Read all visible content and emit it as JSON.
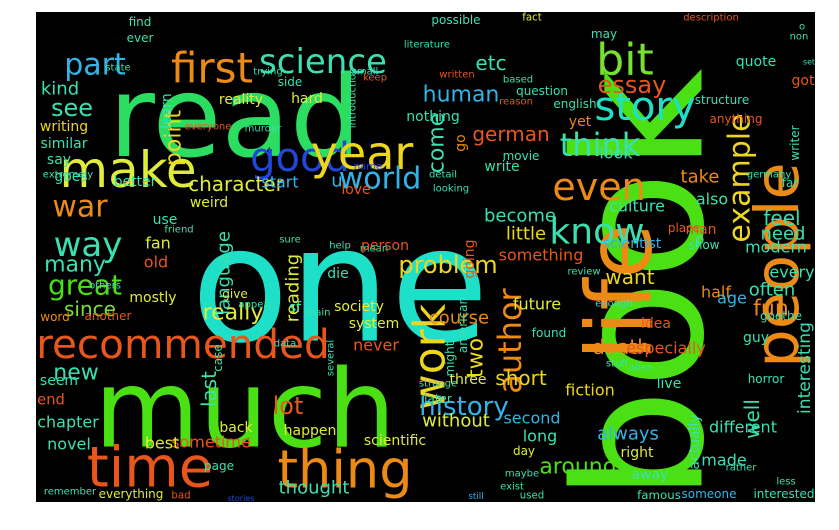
{
  "background": "#000000",
  "words": [
    {
      "text": "book",
      "color": "#4be014",
      "rot": -90
    },
    {
      "text": "one",
      "color": "#1ee0c8",
      "rot": 0
    },
    {
      "text": "read",
      "color": "#2bde62",
      "rot": 0
    },
    {
      "text": "much",
      "color": "#4be014",
      "rot": 0
    },
    {
      "text": "people",
      "color": "#ec8a16",
      "rot": -90
    },
    {
      "text": "life",
      "color": "#ec8a16",
      "rot": -90
    },
    {
      "text": "time",
      "color": "#e8561c",
      "rot": 0
    },
    {
      "text": "thing",
      "color": "#ec8a16",
      "rot": 0
    },
    {
      "text": "make",
      "color": "#e0ec3a",
      "rot": 0
    },
    {
      "text": "recommended",
      "color": "#e8561c",
      "rot": 0
    },
    {
      "text": "first",
      "color": "#ec8a16",
      "rot": 0
    },
    {
      "text": "good",
      "color": "#2146d8",
      "rot": 0
    },
    {
      "text": "year",
      "color": "#ecd71e",
      "rot": 0
    },
    {
      "text": "science",
      "color": "#3ae0b0",
      "rot": 0
    },
    {
      "text": "bit",
      "color": "#78e030",
      "rot": 0
    },
    {
      "text": "story",
      "color": "#1ee0c8",
      "rot": 0
    },
    {
      "text": "part",
      "color": "#32b4e8",
      "rot": 0
    },
    {
      "text": "war",
      "color": "#ec8a16",
      "rot": 0
    },
    {
      "text": "way",
      "color": "#3ae0b0",
      "rot": 0
    },
    {
      "text": "work",
      "color": "#ecd71e",
      "rot": -90
    },
    {
      "text": "know",
      "color": "#3ae0b0",
      "rot": 0
    },
    {
      "text": "even",
      "color": "#ec8a16",
      "rot": 0
    },
    {
      "text": "think",
      "color": "#3ae0b0",
      "rot": 0
    },
    {
      "text": "world",
      "color": "#32b4e8",
      "rot": 0
    },
    {
      "text": "great",
      "color": "#4be014",
      "rot": 0
    },
    {
      "text": "example",
      "color": "#ecd71e",
      "rot": -90
    },
    {
      "text": "essay",
      "color": "#e8561c",
      "rot": 0
    },
    {
      "text": "history",
      "color": "#32b4e8",
      "rot": 0
    },
    {
      "text": "problem",
      "color": "#ecd71e",
      "rot": 0
    },
    {
      "text": "author",
      "color": "#ec8a16",
      "rot": -90
    },
    {
      "text": "around",
      "color": "#4be014",
      "rot": 0
    },
    {
      "text": "stories",
      "color": "#2146d8",
      "rot": 0
    },
    {
      "text": "still",
      "color": "#32b4e8",
      "rot": 0
    },
    {
      "text": "interesting",
      "color": "#3ae0b0",
      "rot": -90
    },
    {
      "text": "lot",
      "color": "#e8561c",
      "rot": 0
    },
    {
      "text": "fun",
      "color": "#ec8a16",
      "rot": 0
    },
    {
      "text": "character",
      "color": "#e0ec3a",
      "rot": 0
    },
    {
      "text": "human",
      "color": "#32b4e8",
      "rot": 0
    },
    {
      "text": "german",
      "color": "#e8561c",
      "rot": 0
    },
    {
      "text": "see",
      "color": "#3ae0b0",
      "rot": 0
    },
    {
      "text": "new",
      "color": "#3ae0b0",
      "rot": 0
    },
    {
      "text": "since",
      "color": "#78e030",
      "rot": 0
    },
    {
      "text": "many",
      "color": "#3ae0b0",
      "rot": 0
    },
    {
      "text": "really",
      "color": "#e0ec3a",
      "rot": 0
    },
    {
      "text": "want",
      "color": "#ecd71e",
      "rot": 0
    },
    {
      "text": "feel",
      "color": "#3ae0b0",
      "rot": 0
    },
    {
      "text": "take",
      "color": "#ec8a16",
      "rot": 0
    },
    {
      "text": "need",
      "color": "#3ae0b0",
      "rot": 0
    },
    {
      "text": "point",
      "color": "#ecd71e",
      "rot": -90
    },
    {
      "text": "come",
      "color": "#3ae0b0",
      "rot": -90
    },
    {
      "text": "etc",
      "color": "#3ae0b0",
      "rot": 0
    },
    {
      "text": "course",
      "color": "#ec8a16",
      "rot": 0
    },
    {
      "text": "kind",
      "color": "#3ae0b0",
      "rot": 0
    },
    {
      "text": "two",
      "color": "#ecd71e",
      "rot": -90
    },
    {
      "text": "thought",
      "color": "#3ae0b0",
      "rot": 0
    },
    {
      "text": "death",
      "color": "#ec8a16",
      "rot": 0
    },
    {
      "text": "short",
      "color": "#ecd71e",
      "rot": 0
    },
    {
      "text": "always",
      "color": "#32b4e8",
      "rot": 0
    },
    {
      "text": "language",
      "color": "#3ae0b0",
      "rot": -90
    },
    {
      "text": "reading",
      "color": "#e0ec3a",
      "rot": -90
    },
    {
      "text": "little",
      "color": "#ecd71e",
      "rot": 0
    },
    {
      "text": "become",
      "color": "#3ae0b0",
      "rot": 0
    },
    {
      "text": "u",
      "color": "#32b4e8",
      "rot": 0
    },
    {
      "text": "start",
      "color": "#32b4e8",
      "rot": 0
    },
    {
      "text": "something",
      "color": "#e8561c",
      "rot": 0
    },
    {
      "text": "without",
      "color": "#e0ec3a",
      "rot": 0
    },
    {
      "text": "future",
      "color": "#e0ec3a",
      "rot": 0
    },
    {
      "text": "last",
      "color": "#3ae0b0",
      "rot": -90
    },
    {
      "text": "sometime",
      "color": "#e8561c",
      "rot": 0
    },
    {
      "text": "end",
      "color": "#e8561c",
      "rot": 0
    },
    {
      "text": "chapter",
      "color": "#3ae0b0",
      "rot": 0
    },
    {
      "text": "novel",
      "color": "#3ae0b0",
      "rot": 0
    },
    {
      "text": "best",
      "color": "#e0ec3a",
      "rot": 0
    },
    {
      "text": "often",
      "color": "#3ae0b0",
      "rot": 0
    },
    {
      "text": "every",
      "color": "#3ae0b0",
      "rot": 0
    },
    {
      "text": "also",
      "color": "#3ae0b0",
      "rot": 0
    },
    {
      "text": "look",
      "color": "#3ae0b0",
      "rot": 0
    },
    {
      "text": "fiction",
      "color": "#ecd71e",
      "rot": 0
    },
    {
      "text": "second",
      "color": "#32b4e8",
      "rot": 0
    },
    {
      "text": "long",
      "color": "#3ae0b0",
      "rot": 0
    },
    {
      "text": "well",
      "color": "#3ae0b0",
      "rot": -90
    },
    {
      "text": "made",
      "color": "#3ae0b0",
      "rot": 0
    },
    {
      "text": "different",
      "color": "#3ae0b0",
      "rot": 0
    },
    {
      "text": "half",
      "color": "#ec8a16",
      "rot": 0
    },
    {
      "text": "modern",
      "color": "#3ae0b0",
      "rot": 0
    },
    {
      "text": "age",
      "color": "#32b4e8",
      "rot": 0
    },
    {
      "text": "culture",
      "color": "#3ae0b0",
      "rot": 0
    },
    {
      "text": "scientist",
      "color": "#32b4e8",
      "rot": 0
    },
    {
      "text": "go",
      "color": "#ec8a16",
      "rot": -90
    },
    {
      "text": "write",
      "color": "#3ae0b0",
      "rot": 0
    },
    {
      "text": "going",
      "color": "#e8561c",
      "rot": -90
    },
    {
      "text": "idea",
      "color": "#e8561c",
      "rot": 0
    },
    {
      "text": "especially",
      "color": "#e8561c",
      "rot": 0
    },
    {
      "text": "guy",
      "color": "#3ae0b0",
      "rot": 0
    },
    {
      "text": "fan",
      "color": "#e0ec3a",
      "rot": 0
    },
    {
      "text": "old",
      "color": "#e8561c",
      "rot": 0
    },
    {
      "text": "use",
      "color": "#3ae0b0",
      "rot": 0
    },
    {
      "text": "die",
      "color": "#3ae0b0",
      "rot": 0
    },
    {
      "text": "love",
      "color": "#e8561c",
      "rot": 0
    },
    {
      "text": "better",
      "color": "#3ae0b0",
      "rot": 0
    },
    {
      "text": "goes",
      "color": "#3ae0b0",
      "rot": 0
    },
    {
      "text": "mostly",
      "color": "#e0ec3a",
      "rot": 0
    },
    {
      "text": "give",
      "color": "#e0ec3a",
      "rot": 0
    },
    {
      "text": "sf",
      "color": "#3ae0b0",
      "rot": 0
    },
    {
      "text": "society",
      "color": "#e0ec3a",
      "rot": 0
    },
    {
      "text": "system",
      "color": "#e0ec3a",
      "rot": 0
    },
    {
      "text": "never",
      "color": "#e8561c",
      "rot": 0
    },
    {
      "text": "happen",
      "color": "#e0ec3a",
      "rot": 0
    },
    {
      "text": "three",
      "color": "#e0ec3a",
      "rot": 0
    },
    {
      "text": "live",
      "color": "#3ae0b0",
      "rot": 0
    },
    {
      "text": "right",
      "color": "#e0ec3a",
      "rot": 0
    },
    {
      "text": "actually",
      "color": "#3ae0b0",
      "rot": -90
    },
    {
      "text": "away",
      "color": "#3ae0b0",
      "rot": 0
    },
    {
      "text": "famous",
      "color": "#3ae0b0",
      "rot": 0
    },
    {
      "text": "someone",
      "color": "#32b4e8",
      "rot": 0
    },
    {
      "text": "used",
      "color": "#3ae0b0",
      "rot": 0
    },
    {
      "text": "day",
      "color": "#e0ec3a",
      "rot": 0
    },
    {
      "text": "scientific",
      "color": "#e0ec3a",
      "rot": 0
    },
    {
      "text": "page",
      "color": "#3ae0b0",
      "rot": 0
    },
    {
      "text": "back",
      "color": "#e0ec3a",
      "rot": 0
    },
    {
      "text": "everything",
      "color": "#e0ec3a",
      "rot": 0
    },
    {
      "text": "bad",
      "color": "#e8561c",
      "rot": 0
    },
    {
      "text": "seem",
      "color": "#3ae0b0",
      "rot": 0
    },
    {
      "text": "nothing",
      "color": "#3ae0b0",
      "rot": 0
    },
    {
      "text": "writing",
      "color": "#ecd71e",
      "rot": 0
    },
    {
      "text": "similar",
      "color": "#3ae0b0",
      "rot": 0
    },
    {
      "text": "say",
      "color": "#3ae0b0",
      "rot": 0
    },
    {
      "text": "reality",
      "color": "#e0ec3a",
      "rot": 0
    },
    {
      "text": "learn",
      "color": "#3ae0b0",
      "rot": -90
    },
    {
      "text": "hard",
      "color": "#e0ec3a",
      "rot": 0
    },
    {
      "text": "side",
      "color": "#3ae0b0",
      "rot": 0
    },
    {
      "text": "english",
      "color": "#3ae0b0",
      "rot": 0
    },
    {
      "text": "quote",
      "color": "#3ae0b0",
      "rot": 0
    },
    {
      "text": "got",
      "color": "#e8561c",
      "rot": 0
    },
    {
      "text": "set",
      "color": "#3ae0b0",
      "rot": 0
    },
    {
      "text": "writer",
      "color": "#3ae0b0",
      "rot": -90
    },
    {
      "text": "possible",
      "color": "#3ae0b0",
      "rot": 0
    },
    {
      "text": "fact",
      "color": "#e0ec3a",
      "rot": 0
    },
    {
      "text": "may",
      "color": "#3ae0b0",
      "rot": 0
    },
    {
      "text": "based",
      "color": "#3ae0b0",
      "rot": 0
    },
    {
      "text": "question",
      "color": "#3ae0b0",
      "rot": 0
    },
    {
      "text": "yet",
      "color": "#ec8a16",
      "rot": 0
    },
    {
      "text": "structure",
      "color": "#3ae0b0",
      "rot": 0
    },
    {
      "text": "anything",
      "color": "#e8561c",
      "rot": 0
    },
    {
      "text": "man",
      "color": "#e8561c",
      "rot": 0
    },
    {
      "text": "place",
      "color": "#e8561c",
      "rot": 0
    },
    {
      "text": "show",
      "color": "#3ae0b0",
      "rot": 0
    },
    {
      "text": "far",
      "color": "#3ae0b0",
      "rot": 0
    },
    {
      "text": "p",
      "color": "#3ae0b0",
      "rot": 0
    },
    {
      "text": "find",
      "color": "#3ae0b0",
      "rot": 0
    },
    {
      "text": "ever",
      "color": "#3ae0b0",
      "rot": 0
    },
    {
      "text": "state",
      "color": "#3ae0b0",
      "rot": 0
    },
    {
      "text": "extremely",
      "color": "#3ae0b0",
      "rot": 0
    },
    {
      "text": "trying",
      "color": "#3ae0b0",
      "rot": 0
    },
    {
      "text": "small",
      "color": "#3ae0b0",
      "rot": 0
    },
    {
      "text": "literature",
      "color": "#3ae0b0",
      "rot": 0
    },
    {
      "text": "keep",
      "color": "#e8561c",
      "rot": 0
    },
    {
      "text": "written",
      "color": "#e8561c",
      "rot": 0
    },
    {
      "text": "introduction",
      "color": "#3ae0b0",
      "rot": -90
    },
    {
      "text": "reason",
      "color": "#e8561c",
      "rot": 0
    },
    {
      "text": "everyone",
      "color": "#e8561c",
      "rot": 0
    },
    {
      "text": "murder",
      "color": "#3ae0b0",
      "rot": 0
    },
    {
      "text": "name",
      "color": "#2146d8",
      "rot": 0
    },
    {
      "text": "movie",
      "color": "#3ae0b0",
      "rot": 0
    },
    {
      "text": "detail",
      "color": "#3ae0b0",
      "rot": 0
    },
    {
      "text": "looking",
      "color": "#3ae0b0",
      "rot": 0
    },
    {
      "text": "germany",
      "color": "#3ae0b0",
      "rot": 0
    },
    {
      "text": "friend",
      "color": "#3ae0b0",
      "rot": 0
    },
    {
      "text": "sure",
      "color": "#3ae0b0",
      "rot": 0
    },
    {
      "text": "help",
      "color": "#3ae0b0",
      "rot": 0
    },
    {
      "text": "mean",
      "color": "#3ae0b0",
      "rot": 0
    },
    {
      "text": "person",
      "color": "#e8561c",
      "rot": 0
    },
    {
      "text": "review",
      "color": "#3ae0b0",
      "rot": 0
    },
    {
      "text": "appear",
      "color": "#3ae0b0",
      "rot": 0
    },
    {
      "text": "others",
      "color": "#3ae0b0",
      "rot": 0
    },
    {
      "text": "main",
      "color": "#3ae0b0",
      "rot": 0
    },
    {
      "text": "word",
      "color": "#ec8a16",
      "rot": 0
    },
    {
      "text": "another",
      "color": "#e8561c",
      "rot": 0
    },
    {
      "text": "data",
      "color": "#3ae0b0",
      "rot": 0
    },
    {
      "text": "several",
      "color": "#3ae0b0",
      "rot": -90
    },
    {
      "text": "case",
      "color": "#3ae0b0",
      "rot": -90
    },
    {
      "text": "american",
      "color": "#3ae0b0",
      "rot": -90
    },
    {
      "text": "might",
      "color": "#3ae0b0",
      "rot": -90
    },
    {
      "text": "found",
      "color": "#3ae0b0",
      "rot": 0
    },
    {
      "text": "enough",
      "color": "#3ae0b0",
      "rot": 0
    },
    {
      "text": "stuff",
      "color": "#3ae0b0",
      "rot": 0
    },
    {
      "text": "alien",
      "color": "#3ae0b0",
      "rot": 0
    },
    {
      "text": "strange",
      "color": "#3ae0b0",
      "rot": 0
    },
    {
      "text": "later",
      "color": "#3ae0b0",
      "rot": 0
    },
    {
      "text": "maybe",
      "color": "#3ae0b0",
      "rot": 0
    },
    {
      "text": "exist",
      "color": "#3ae0b0",
      "rot": 0
    },
    {
      "text": "horror",
      "color": "#3ae0b0",
      "rot": 0
    },
    {
      "text": "rather",
      "color": "#3ae0b0",
      "rot": 0
    },
    {
      "text": "less",
      "color": "#3ae0b0",
      "rot": 0
    },
    {
      "text": "interested",
      "color": "#3ae0b0",
      "rot": 0
    },
    {
      "text": "remember",
      "color": "#3ae0b0",
      "rot": 0
    },
    {
      "text": "goethe",
      "color": "#3ae0b0",
      "rot": 0
    },
    {
      "text": "weird",
      "color": "#e0ec3a",
      "rot": 0
    },
    {
      "text": "description",
      "color": "#e8561c",
      "rot": 0
    },
    {
      "text": "non",
      "color": "#3ae0b0",
      "rot": 0
    },
    {
      "text": "o",
      "color": "#3ae0b0",
      "rot": 0
    }
  ]
}
